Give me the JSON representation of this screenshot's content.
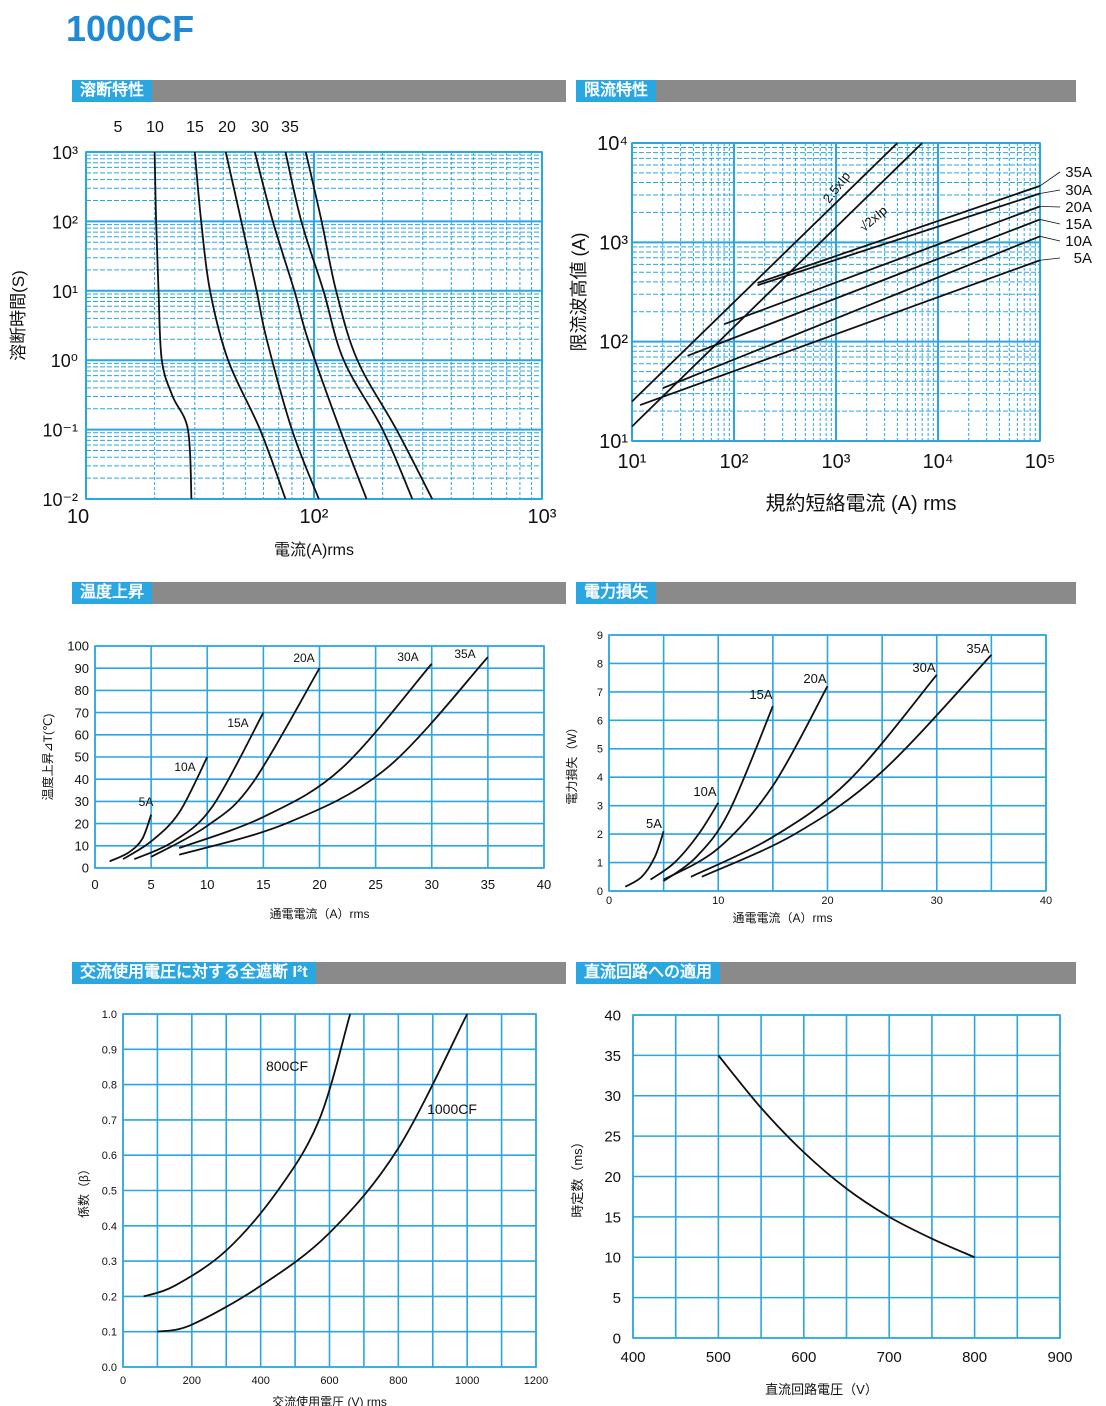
{
  "page_title": "1000CF",
  "sections": {
    "melting": "溶断特性",
    "limiting": "限流特性",
    "temp": "温度上昇",
    "power": "電力損失",
    "i2t": "交流使用電圧に対する全遮断 I²t",
    "dc": "直流回路への適用"
  },
  "colors": {
    "grid": "#2aa6e0",
    "curve": "#111111",
    "title": "#1e8ad6",
    "bar": "#8a8a8a"
  },
  "chart_data": [
    {
      "id": "melting",
      "type": "line",
      "xscale": "log",
      "yscale": "log",
      "xlim": [
        10,
        1000
      ],
      "ylim": [
        0.01,
        1000
      ],
      "xticks": [
        "10",
        "10²",
        "10³"
      ],
      "yticks": [
        "10⁻²",
        "10⁻¹",
        "10⁰",
        "10¹",
        "10²",
        "10³"
      ],
      "xlabel": "電流(A)rms",
      "ylabel": "溶断時間(S)",
      "series": [
        {
          "name": "5",
          "points": [
            [
              20,
              1000
            ],
            [
              20.3,
              100
            ],
            [
              20.8,
              10
            ],
            [
              21.5,
              1
            ],
            [
              24,
              0.3
            ],
            [
              28,
              0.1
            ],
            [
              29,
              0.01
            ]
          ]
        },
        {
          "name": "10",
          "points": [
            [
              30,
              1000
            ],
            [
              32,
              100
            ],
            [
              35,
              10
            ],
            [
              42,
              1
            ],
            [
              58,
              0.1
            ],
            [
              75,
              0.01
            ]
          ]
        },
        {
          "name": "15",
          "points": [
            [
              41,
              1000
            ],
            [
              48,
              100
            ],
            [
              56,
              10
            ],
            [
              62,
              2
            ],
            [
              80,
              0.1
            ],
            [
              105,
              0.01
            ]
          ]
        },
        {
          "name": "20",
          "points": [
            [
              55,
              1000
            ],
            [
              66,
              100
            ],
            [
              82,
              10
            ],
            [
              94,
              2
            ],
            [
              130,
              0.1
            ],
            [
              170,
              0.01
            ]
          ]
        },
        {
          "name": "30",
          "points": [
            [
              75,
              1000
            ],
            [
              88,
              100
            ],
            [
              110,
              10
            ],
            [
              135,
              1
            ],
            [
              200,
              0.1
            ],
            [
              270,
              0.01
            ]
          ]
        },
        {
          "name": "35",
          "points": [
            [
              92,
              1000
            ],
            [
              108,
              100
            ],
            [
              125,
              10
            ],
            [
              155,
              1
            ],
            [
              230,
              0.1
            ],
            [
              330,
              0.01
            ]
          ]
        }
      ]
    },
    {
      "id": "limiting",
      "type": "line",
      "xscale": "log",
      "yscale": "log",
      "xlim": [
        10,
        100000
      ],
      "ylim": [
        10,
        10000
      ],
      "xticks": [
        "10¹",
        "10²",
        "10³",
        "10⁴",
        "10⁵"
      ],
      "yticks": [
        "10¹",
        "10²",
        "10³",
        "10⁴"
      ],
      "xlabel": "規約短絡電流 (A) rms",
      "ylabel": "限流波高値 (A)",
      "ref_lines": [
        {
          "name": "2.5xIp",
          "points": [
            [
              10,
              25
            ],
            [
              4000,
              10000
            ]
          ]
        },
        {
          "name": "√2xIp",
          "points": [
            [
              10,
              14
            ],
            [
              7000,
              10000
            ]
          ]
        }
      ],
      "series": [
        {
          "name": "35A",
          "points": [
            [
              170,
              390
            ],
            [
              100000,
              3700
            ]
          ]
        },
        {
          "name": "30A",
          "points": [
            [
              170,
              370
            ],
            [
              100000,
              3100
            ]
          ]
        },
        {
          "name": "20A",
          "points": [
            [
              80,
              150
            ],
            [
              100000,
              2300
            ]
          ]
        },
        {
          "name": "15A",
          "points": [
            [
              35,
              72
            ],
            [
              100000,
              1700
            ]
          ]
        },
        {
          "name": "10A",
          "points": [
            [
              20,
              34
            ],
            [
              100000,
              1150
            ]
          ]
        },
        {
          "name": "5A",
          "points": [
            [
              12,
              23
            ],
            [
              100000,
              660
            ]
          ]
        }
      ]
    },
    {
      "id": "temp",
      "type": "line",
      "xlim": [
        0,
        40
      ],
      "ylim": [
        0,
        100
      ],
      "xticks": [
        0,
        5,
        10,
        15,
        20,
        25,
        30,
        35,
        40
      ],
      "yticks": [
        0,
        10,
        20,
        30,
        40,
        50,
        60,
        70,
        80,
        90,
        100
      ],
      "xlabel": "通電電流（A）rms",
      "ylabel": "温度上昇⊿T(℃)",
      "series": [
        {
          "name": "5A",
          "points": [
            [
              1.3,
              3
            ],
            [
              3,
              7
            ],
            [
              4.2,
              13
            ],
            [
              5,
              24
            ]
          ]
        },
        {
          "name": "10A",
          "points": [
            [
              2.5,
              4
            ],
            [
              5,
              12
            ],
            [
              7.5,
              25
            ],
            [
              10,
              50
            ]
          ]
        },
        {
          "name": "15A",
          "points": [
            [
              3.5,
              4
            ],
            [
              7,
              12
            ],
            [
              10.5,
              28
            ],
            [
              15,
              70
            ]
          ]
        },
        {
          "name": "20A",
          "points": [
            [
              5,
              5
            ],
            [
              10,
              19
            ],
            [
              14,
              38
            ],
            [
              20,
              90
            ]
          ]
        },
        {
          "name": "30A",
          "points": [
            [
              7.5,
              9
            ],
            [
              15,
              23
            ],
            [
              22,
              45
            ],
            [
              30,
              92
            ]
          ]
        },
        {
          "name": "35A",
          "points": [
            [
              7.5,
              6
            ],
            [
              17,
              20
            ],
            [
              26,
              45
            ],
            [
              35,
              95
            ]
          ]
        }
      ]
    },
    {
      "id": "power",
      "type": "line",
      "xlim": [
        0,
        40
      ],
      "ylim": [
        0,
        9
      ],
      "xticks": [
        0,
        10,
        20,
        30,
        40
      ],
      "yticks": [
        0,
        1,
        2,
        3,
        4,
        5,
        6,
        7,
        8,
        9
      ],
      "xlabel": "通電電流（A）rms",
      "ylabel": "電力損失（W）",
      "series": [
        {
          "name": "5A",
          "points": [
            [
              1.5,
              0.15
            ],
            [
              3,
              0.5
            ],
            [
              4.2,
              1.2
            ],
            [
              5,
              2.1
            ]
          ]
        },
        {
          "name": "10A",
          "points": [
            [
              3.8,
              0.4
            ],
            [
              6,
              1.0
            ],
            [
              8.2,
              2.0
            ],
            [
              10,
              3.1
            ]
          ]
        },
        {
          "name": "15A",
          "points": [
            [
              5,
              0.35
            ],
            [
              8,
              1.2
            ],
            [
              11,
              2.8
            ],
            [
              15,
              6.5
            ]
          ]
        },
        {
          "name": "20A",
          "points": [
            [
              5,
              0.4
            ],
            [
              10,
              1.5
            ],
            [
              15,
              3.7
            ],
            [
              20,
              7.2
            ]
          ]
        },
        {
          "name": "30A",
          "points": [
            [
              7.5,
              0.5
            ],
            [
              15,
              1.9
            ],
            [
              22,
              3.9
            ],
            [
              30,
              7.6
            ]
          ]
        },
        {
          "name": "35A",
          "points": [
            [
              8.5,
              0.5
            ],
            [
              17,
              2.0
            ],
            [
              25,
              4.2
            ],
            [
              35,
              8.3
            ]
          ]
        }
      ]
    },
    {
      "id": "i2t",
      "type": "line",
      "xlim": [
        0,
        1200
      ],
      "ylim": [
        0,
        1
      ],
      "xticks": [
        0,
        200,
        400,
        600,
        800,
        1000,
        1200
      ],
      "yticks": [
        "0.0",
        "0.1",
        "0.2",
        "0.3",
        "0.4",
        "0.5",
        "0.6",
        "0.7",
        "0.8",
        "0.9",
        "1.0"
      ],
      "xlabel": "交流使用電圧 (V) rms",
      "ylabel": "係数（β）",
      "series": [
        {
          "name": "800CF",
          "points": [
            [
              60,
              0.2
            ],
            [
              150,
              0.23
            ],
            [
              300,
              0.33
            ],
            [
              450,
              0.5
            ],
            [
              570,
              0.7
            ],
            [
              660,
              1.0
            ]
          ]
        },
        {
          "name": "1000CF",
          "points": [
            [
              100,
              0.1
            ],
            [
              200,
              0.12
            ],
            [
              400,
              0.23
            ],
            [
              600,
              0.38
            ],
            [
              800,
              0.62
            ],
            [
              1000,
              1.0
            ]
          ]
        }
      ]
    },
    {
      "id": "dc",
      "type": "line",
      "xlim": [
        400,
        900
      ],
      "ylim": [
        0,
        40
      ],
      "xticks": [
        400,
        500,
        600,
        700,
        800,
        900
      ],
      "yticks": [
        0,
        5,
        10,
        15,
        20,
        25,
        30,
        35,
        40
      ],
      "xlabel": "直流回路電圧（V）",
      "ylabel": "時定数（ms）",
      "series": [
        {
          "name": "",
          "points": [
            [
              500,
              35
            ],
            [
              550,
              28.5
            ],
            [
              600,
              23
            ],
            [
              650,
              18.5
            ],
            [
              700,
              15
            ],
            [
              750,
              12.3
            ],
            [
              800,
              10
            ]
          ]
        }
      ]
    }
  ]
}
